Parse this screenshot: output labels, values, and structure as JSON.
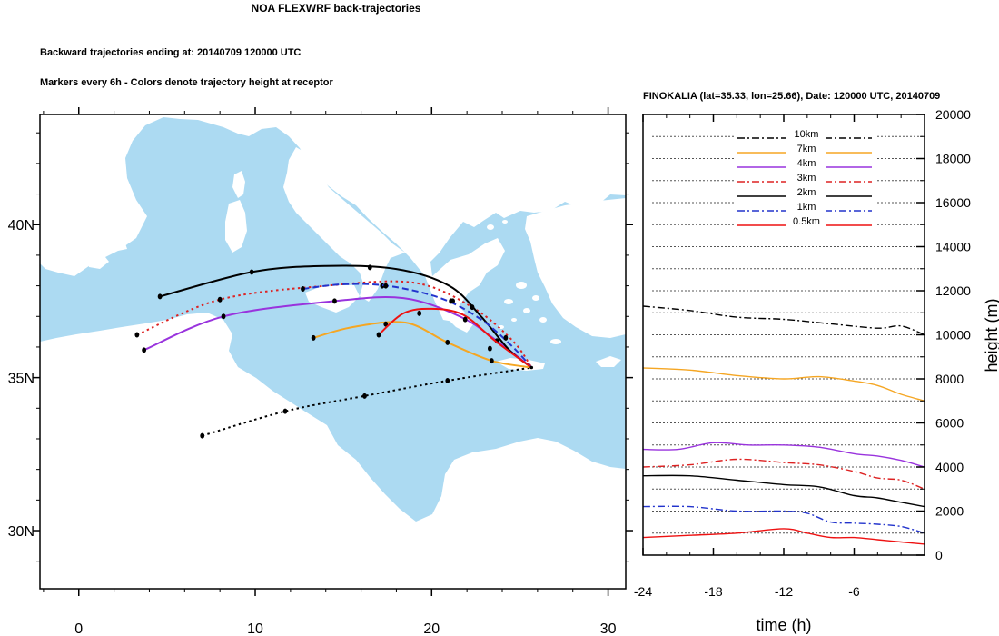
{
  "titles": {
    "main": "NOA FLEXWRF back-trajectories",
    "ending": "Backward trajectories ending at: 20140709  120000 UTC",
    "markers": "Markers every 6h - Colors denote trajectory height at receptor",
    "station": "FINOKALIA (lat=35.33,  lon=25.66), Date: 120000 UTC, 20140709"
  },
  "map": {
    "lon_range": [
      -2.2,
      31
    ],
    "lat_range": [
      28.1,
      43.6
    ],
    "lon_ticks": [
      0,
      10,
      20,
      30
    ],
    "lon_tick_labels": [
      "0",
      "10",
      "20",
      "30"
    ],
    "lat_ticks": [
      30,
      35,
      40
    ],
    "lat_tick_labels": [
      "30N",
      "35N",
      "40N"
    ],
    "sea_color": "#acdaf2",
    "land_color": "#ffffff",
    "receptor": {
      "lon": 25.66,
      "lat": 35.33
    }
  },
  "chart_data": {
    "type": "line",
    "xlabel": "time (h)",
    "ylabel": "height (m)",
    "xlim": [
      -24,
      0
    ],
    "ylim": [
      0,
      20000
    ],
    "x_ticks": [
      -24,
      -18,
      -12,
      -6
    ],
    "x_tick_labels": [
      "-24",
      "-18",
      "-12",
      "-6"
    ],
    "y_ticks": [
      0,
      2000,
      4000,
      6000,
      8000,
      10000,
      12000,
      14000,
      16000,
      18000,
      20000
    ],
    "y_tick_labels": [
      "0",
      "2000",
      "4000",
      "6000",
      "8000",
      "10000",
      "12000",
      "14000",
      "16000",
      "18000",
      "20000"
    ],
    "legend_position": "top-center",
    "series": [
      {
        "name": "10km",
        "color": "#000000",
        "dash": "dashdot",
        "x": [
          -24,
          -20,
          -16,
          -12,
          -8,
          -4,
          -2,
          0
        ],
        "y": [
          11300,
          11100,
          10800,
          10700,
          10500,
          10300,
          10400,
          10000
        ]
      },
      {
        "name": "7km",
        "color": "#f5a623",
        "dash": "solid",
        "x": [
          -24,
          -20,
          -16,
          -12,
          -9,
          -6,
          -4,
          -2,
          0
        ],
        "y": [
          8500,
          8400,
          8150,
          8000,
          8100,
          7900,
          7700,
          7300,
          7000
        ]
      },
      {
        "name": "4km",
        "color": "#9933dd",
        "dash": "solid",
        "x": [
          -24,
          -21,
          -18,
          -15,
          -12,
          -9,
          -6,
          -4,
          -2,
          0
        ],
        "y": [
          4800,
          4800,
          5100,
          5000,
          5000,
          4900,
          4600,
          4500,
          4300,
          4000
        ]
      },
      {
        "name": "3km",
        "color": "#dd2222",
        "dash": "dashdot",
        "x": [
          -24,
          -20,
          -16,
          -12,
          -9,
          -6,
          -4,
          -2,
          0
        ],
        "y": [
          4000,
          4100,
          4350,
          4200,
          4100,
          3800,
          3500,
          3400,
          3000
        ]
      },
      {
        "name": "2km",
        "color": "#000000",
        "dash": "solid",
        "x": [
          -24,
          -20,
          -16,
          -12,
          -9,
          -6,
          -4,
          -2,
          0
        ],
        "y": [
          3600,
          3600,
          3400,
          3200,
          3100,
          2700,
          2600,
          2400,
          2200
        ]
      },
      {
        "name": "1km",
        "color": "#2233cc",
        "dash": "dashdot",
        "x": [
          -24,
          -20,
          -16,
          -12,
          -10,
          -8,
          -6,
          -4,
          -2,
          0
        ],
        "y": [
          2200,
          2200,
          2000,
          2000,
          1900,
          1500,
          1450,
          1400,
          1300,
          1000
        ]
      },
      {
        "name": "0.5km",
        "color": "#ee1111",
        "dash": "solid",
        "x": [
          -24,
          -20,
          -16,
          -12,
          -10,
          -8,
          -6,
          -4,
          -2,
          0
        ],
        "y": [
          800,
          900,
          1000,
          1200,
          1000,
          800,
          800,
          700,
          600,
          500
        ]
      }
    ]
  },
  "trajectories": [
    {
      "name": "10km",
      "color": "#000000",
      "dash": "dotted",
      "points": [
        [
          7.0,
          33.1
        ],
        [
          11.7,
          33.9
        ],
        [
          16.2,
          34.4
        ],
        [
          20.9,
          34.9
        ],
        [
          25.66,
          35.33
        ]
      ],
      "markers": [
        [
          7.0,
          33.1
        ],
        [
          11.7,
          33.9
        ],
        [
          16.2,
          34.4
        ],
        [
          20.9,
          34.9
        ]
      ]
    },
    {
      "name": "7km",
      "color": "#f5a623",
      "dash": "solid",
      "points": [
        [
          13.3,
          36.3
        ],
        [
          15.5,
          36.65
        ],
        [
          18.5,
          36.8
        ],
        [
          20.9,
          36.15
        ],
        [
          23.4,
          35.55
        ],
        [
          25.66,
          35.33
        ]
      ],
      "markers": [
        [
          13.3,
          36.3
        ],
        [
          17.4,
          36.75
        ],
        [
          20.9,
          36.15
        ],
        [
          23.4,
          35.55
        ]
      ]
    },
    {
      "name": "4km",
      "color": "#9933dd",
      "dash": "solid",
      "points": [
        [
          3.7,
          35.9
        ],
        [
          8.2,
          37.0
        ],
        [
          14.5,
          37.5
        ],
        [
          18.4,
          37.6
        ],
        [
          21.6,
          37.0
        ],
        [
          23.7,
          36.2
        ],
        [
          25.66,
          35.33
        ]
      ],
      "markers": [
        [
          3.7,
          35.9
        ],
        [
          8.2,
          37.0
        ],
        [
          14.5,
          37.5
        ],
        [
          23.7,
          36.2
        ]
      ]
    },
    {
      "name": "3km",
      "color": "#dd2222",
      "dash": "dotted",
      "points": [
        [
          3.3,
          36.4
        ],
        [
          8.0,
          37.55
        ],
        [
          14.0,
          38.0
        ],
        [
          19.0,
          38.1
        ],
        [
          22.3,
          37.3
        ],
        [
          24.6,
          36.2
        ],
        [
          25.66,
          35.33
        ]
      ],
      "markers": [
        [
          3.3,
          36.4
        ],
        [
          8.0,
          37.55
        ],
        [
          17.2,
          38.0
        ],
        [
          21.2,
          37.5
        ]
      ]
    },
    {
      "name": "2km",
      "color": "#000000",
      "dash": "solid",
      "points": [
        [
          4.6,
          37.65
        ],
        [
          9.8,
          38.45
        ],
        [
          14.0,
          38.65
        ],
        [
          18.0,
          38.55
        ],
        [
          21.0,
          38.0
        ],
        [
          22.8,
          37.0
        ],
        [
          24.4,
          35.9
        ],
        [
          25.66,
          35.33
        ]
      ],
      "markers": [
        [
          4.6,
          37.65
        ],
        [
          9.8,
          38.45
        ],
        [
          16.5,
          38.6
        ],
        [
          22.3,
          37.3
        ]
      ]
    },
    {
      "name": "1km",
      "color": "#2233cc",
      "dash": "dashed",
      "points": [
        [
          12.7,
          37.9
        ],
        [
          15.0,
          38.05
        ],
        [
          17.5,
          38.0
        ],
        [
          20.5,
          37.6
        ],
        [
          22.8,
          36.9
        ],
        [
          24.6,
          36.0
        ],
        [
          25.66,
          35.33
        ]
      ],
      "markers": [
        [
          12.7,
          37.9
        ],
        [
          17.4,
          38.0
        ],
        [
          21.1,
          37.5
        ],
        [
          24.2,
          36.3
        ]
      ]
    },
    {
      "name": "0.5km",
      "color": "#ee1111",
      "dash": "solid",
      "points": [
        [
          17.0,
          36.4
        ],
        [
          18.4,
          37.1
        ],
        [
          20.0,
          37.25
        ],
        [
          21.8,
          37.05
        ],
        [
          23.6,
          36.2
        ],
        [
          25.66,
          35.33
        ]
      ],
      "markers": [
        [
          17.0,
          36.4
        ],
        [
          19.3,
          37.1
        ],
        [
          21.9,
          36.9
        ],
        [
          23.3,
          35.95
        ]
      ]
    }
  ]
}
